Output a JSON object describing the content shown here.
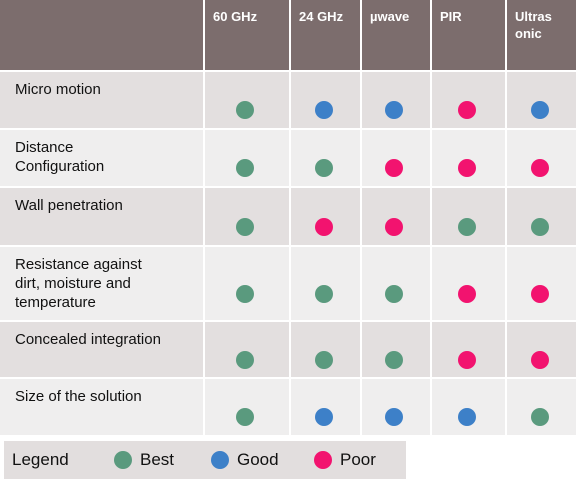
{
  "table": {
    "headers": [
      "",
      "60 GHz",
      "24 GHz",
      "µwave",
      "PIR",
      "Ultras\nonic"
    ],
    "rows": [
      {
        "label": "Micro motion",
        "ratings": [
          0,
          1,
          1,
          2,
          1
        ]
      },
      {
        "label": "Distance\nConfiguration",
        "ratings": [
          0,
          0,
          2,
          2,
          2
        ]
      },
      {
        "label": "Wall penetration",
        "ratings": [
          0,
          2,
          2,
          0,
          0
        ]
      },
      {
        "label": "Resistance against\ndirt, moisture and\ntemperature",
        "ratings": [
          0,
          0,
          0,
          2,
          2
        ]
      },
      {
        "label": "Concealed integration",
        "ratings": [
          0,
          0,
          0,
          2,
          2
        ]
      },
      {
        "label": "Size of the solution",
        "ratings": [
          0,
          1,
          1,
          1,
          0
        ]
      }
    ]
  },
  "legend": {
    "title": "Legend",
    "items": [
      {
        "label": "Best",
        "color": "#5a9a7e"
      },
      {
        "label": "Good",
        "color": "#3d80c8"
      },
      {
        "label": "Poor",
        "color": "#f2136f"
      }
    ]
  }
}
